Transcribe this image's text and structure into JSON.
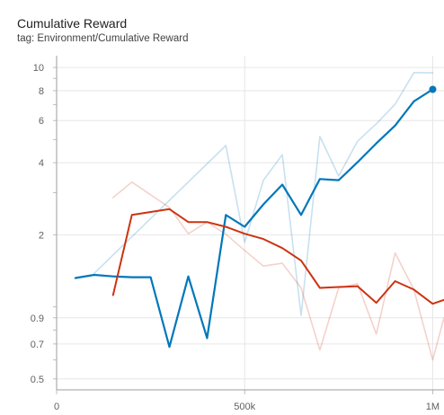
{
  "header": {
    "title": "Cumulative Reward",
    "subtitle": "tag: Environment/Cumulative Reward"
  },
  "chart_data": {
    "type": "line",
    "title": "Cumulative Reward",
    "subtitle": "tag: Environment/Cumulative Reward",
    "xlabel": "",
    "ylabel": "",
    "xlim": [
      0,
      1030000
    ],
    "ylim": [
      0.45,
      11.2
    ],
    "y_scale": "log",
    "grid": true,
    "x_ticks": [
      {
        "value": 0,
        "label": "0"
      },
      {
        "value": 500000,
        "label": "500k"
      },
      {
        "value": 1000000,
        "label": "1M"
      }
    ],
    "y_ticks": [
      {
        "value": 10,
        "label": "10"
      },
      {
        "value": 8,
        "label": "8"
      },
      {
        "value": 6,
        "label": "6"
      },
      {
        "value": 4,
        "label": "4"
      },
      {
        "value": 2,
        "label": "2"
      },
      {
        "value": 0.9,
        "label": "0.9"
      },
      {
        "value": 0.7,
        "label": "0.7"
      },
      {
        "value": 0.5,
        "label": "0.5"
      }
    ],
    "series": [
      {
        "color": "#0077bb",
        "opacity": 1,
        "stroke": 2.2,
        "role": "smoothed",
        "x": [
          50000,
          100000,
          150000,
          200000,
          250000,
          300000,
          350000,
          400000,
          450000,
          500000,
          550000,
          600000,
          650000,
          700000,
          750000,
          800000,
          850000,
          900000,
          950000,
          1000000
        ],
        "y": [
          1.32,
          1.36,
          1.34,
          1.33,
          1.33,
          0.68,
          1.34,
          0.74,
          2.42,
          2.16,
          2.68,
          3.24,
          2.42,
          3.42,
          3.38,
          4.02,
          4.82,
          5.72,
          7.22,
          8.1
        ]
      },
      {
        "color": "#0077bb",
        "opacity": 0.22,
        "stroke": 1.6,
        "role": "raw",
        "x": [
          100000,
          450000,
          500000,
          550000,
          600000,
          650000,
          700000,
          750000,
          800000,
          850000,
          900000,
          950000,
          1000000
        ],
        "y": [
          1.38,
          4.72,
          1.86,
          3.38,
          4.32,
          0.92,
          5.15,
          3.52,
          4.92,
          5.82,
          7.02,
          9.52,
          9.5
        ]
      },
      {
        "color": "#cc3311",
        "opacity": 1,
        "stroke": 2.0,
        "role": "smoothed",
        "x": [
          150000,
          200000,
          300000,
          350000,
          400000,
          450000,
          500000,
          550000,
          600000,
          650000,
          700000,
          750000,
          800000,
          850000,
          900000,
          950000,
          1000000,
          1030000
        ],
        "y": [
          1.12,
          2.42,
          2.56,
          2.26,
          2.26,
          2.16,
          2.02,
          1.92,
          1.76,
          1.56,
          1.2,
          1.21,
          1.22,
          1.04,
          1.28,
          1.18,
          1.03,
          1.07
        ]
      },
      {
        "color": "#cc3311",
        "opacity": 0.22,
        "stroke": 1.6,
        "role": "raw",
        "x": [
          150000,
          200000,
          300000,
          350000,
          400000,
          450000,
          500000,
          550000,
          600000,
          650000,
          700000,
          750000,
          800000,
          850000,
          900000,
          950000,
          1000000,
          1030000
        ],
        "y": [
          2.86,
          3.32,
          2.6,
          2.02,
          2.26,
          2.01,
          1.72,
          1.48,
          1.52,
          1.2,
          0.66,
          1.2,
          1.25,
          0.77,
          1.68,
          1.18,
          0.6,
          0.9
        ]
      }
    ],
    "end_marker": {
      "x": 1000000,
      "y": 8.1,
      "color": "#0077bb"
    }
  }
}
